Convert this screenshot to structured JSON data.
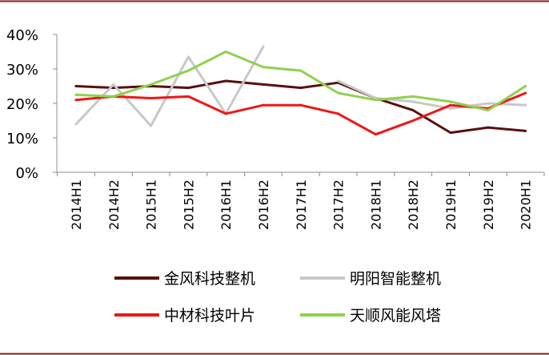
{
  "chart_data": {
    "type": "line",
    "categories": [
      "2014H1",
      "2014H2",
      "2015H1",
      "2015H2",
      "2016H1",
      "2016H2",
      "2017H1",
      "2017H2",
      "2018H1",
      "2018H2",
      "2019H1",
      "2019H2",
      "2020H1"
    ],
    "ylim": [
      0,
      40
    ],
    "yticks": [
      "0%",
      "10%",
      "20%",
      "30%",
      "40%"
    ],
    "grid": false,
    "legend_position": "bottom",
    "series": [
      {
        "name": "金风科技整机",
        "color": "#5a0f0f",
        "values": [
          25.0,
          24.5,
          25.0,
          24.5,
          26.5,
          25.5,
          24.5,
          26.0,
          21.5,
          18.0,
          11.5,
          13.0,
          12.0
        ]
      },
      {
        "name": "明阳智能整机",
        "color": "#c8c8c8",
        "values": [
          14.0,
          25.5,
          13.5,
          33.5,
          17.0,
          36.5,
          null,
          26.5,
          21.5,
          20.5,
          18.5,
          20.0,
          19.5
        ]
      },
      {
        "name": "中材科技叶片",
        "color": "#f01616",
        "values": [
          21.0,
          22.0,
          21.5,
          22.0,
          17.0,
          19.5,
          19.5,
          17.0,
          11.0,
          15.0,
          19.5,
          18.5,
          23.0
        ]
      },
      {
        "name": "天顺风能风塔",
        "color": "#8fd14f",
        "values": [
          22.5,
          22.0,
          25.5,
          29.5,
          35.0,
          30.5,
          29.5,
          23.0,
          21.0,
          22.0,
          20.5,
          18.0,
          25.0
        ]
      }
    ]
  }
}
